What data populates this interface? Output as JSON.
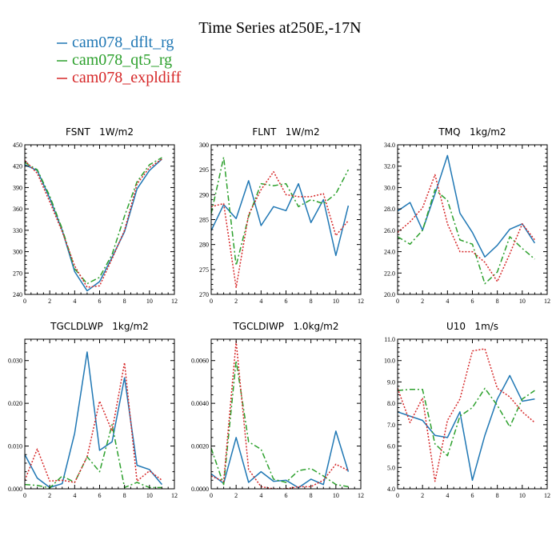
{
  "figure": {
    "title": "Time Series at250E,-17N"
  },
  "legend": [
    {
      "label": "cam078_dflt_rg",
      "color": "#1f77b4",
      "dash": "solid"
    },
    {
      "label": "cam078_qt5_rg",
      "color": "#2ca02c",
      "dash": "dashdot"
    },
    {
      "label": "cam078_expldiff",
      "color": "#d62728",
      "dash": "dotted"
    }
  ],
  "chart_data": [
    {
      "type": "line",
      "title": "FSNT   1W/m2",
      "x": [
        0,
        1,
        2,
        3,
        4,
        5,
        6,
        7,
        8,
        9,
        10,
        11
      ],
      "xlim": [
        0,
        12
      ],
      "xticks": [
        0,
        2,
        4,
        6,
        8,
        10,
        12
      ],
      "xtick_labels": [
        "0",
        "2",
        "4",
        "6",
        "8",
        "10",
        "12"
      ],
      "ylim": [
        240,
        450
      ],
      "yticks": [
        240,
        270,
        300,
        330,
        360,
        390,
        420,
        450
      ],
      "ytick_labels": [
        "240",
        "270",
        "300",
        "330",
        "360",
        "390",
        "420",
        "450"
      ],
      "series": [
        {
          "name": "cam078_dflt_rg",
          "values": [
            422,
            414,
            375,
            330,
            272,
            245,
            258,
            292,
            328,
            388,
            414,
            430
          ]
        },
        {
          "name": "cam078_qt5_rg",
          "values": [
            425,
            415,
            378,
            332,
            276,
            255,
            264,
            296,
            350,
            398,
            422,
            432
          ]
        },
        {
          "name": "cam078_expldiff",
          "values": [
            428,
            410,
            370,
            328,
            280,
            250,
            252,
            290,
            330,
            395,
            418,
            430
          ]
        }
      ]
    },
    {
      "type": "line",
      "title": "FLNT   1W/m2",
      "x": [
        0,
        1,
        2,
        3,
        4,
        5,
        6,
        7,
        8,
        9,
        10,
        11
      ],
      "xlim": [
        0,
        12
      ],
      "xticks": [
        0,
        2,
        4,
        6,
        8,
        10,
        12
      ],
      "xtick_labels": [
        "0",
        "2",
        "4",
        "6",
        "8",
        "10",
        "12"
      ],
      "ylim": [
        270,
        300
      ],
      "yticks": [
        270,
        275,
        280,
        285,
        290,
        295,
        300
      ],
      "ytick_labels": [
        "270",
        "275",
        "280",
        "285",
        "290",
        "295",
        "300"
      ],
      "series": [
        {
          "name": "cam078_dflt_rg",
          "values": [
            282.8,
            288.0,
            285.2,
            292.8,
            283.8,
            287.6,
            286.8,
            292.2,
            284.4,
            289.0,
            277.8,
            287.8
          ]
        },
        {
          "name": "cam078_qt5_rg",
          "values": [
            286.2,
            297.5,
            275.8,
            285.6,
            292.2,
            291.8,
            292.2,
            287.6,
            289.0,
            288.2,
            290.2,
            295.0
          ]
        },
        {
          "name": "cam078_expldiff",
          "values": [
            287.6,
            288.2,
            271.4,
            286.0,
            291.0,
            294.6,
            290.0,
            289.6,
            289.6,
            290.2,
            281.8,
            284.8
          ]
        }
      ]
    },
    {
      "type": "line",
      "title": "TMQ   1kg/m2",
      "x": [
        0,
        1,
        2,
        3,
        4,
        5,
        6,
        7,
        8,
        9,
        10,
        11
      ],
      "xlim": [
        0,
        12
      ],
      "xticks": [
        0,
        2,
        4,
        6,
        8,
        10,
        12
      ],
      "xtick_labels": [
        "0",
        "2",
        "4",
        "6",
        "8",
        "10",
        "12"
      ],
      "ylim": [
        20,
        34
      ],
      "yticks": [
        20,
        22,
        24,
        26,
        28,
        30,
        32,
        34
      ],
      "ytick_labels": [
        "20.0",
        "22.0",
        "24.0",
        "26.0",
        "28.0",
        "30.0",
        "32.0",
        "34.0"
      ],
      "series": [
        {
          "name": "cam078_dflt_rg",
          "values": [
            27.8,
            28.6,
            26.0,
            29.4,
            33.0,
            27.6,
            25.8,
            23.5,
            24.6,
            26.1,
            26.6,
            24.8
          ]
        },
        {
          "name": "cam078_qt5_rg",
          "values": [
            25.4,
            24.7,
            26.0,
            29.8,
            28.8,
            25.1,
            24.7,
            21.0,
            22.1,
            25.4,
            24.3,
            23.3
          ]
        },
        {
          "name": "cam078_expldiff",
          "values": [
            25.8,
            26.8,
            28.1,
            31.2,
            26.6,
            24.0,
            24.0,
            23.0,
            21.2,
            23.8,
            26.6,
            25.1
          ]
        }
      ]
    },
    {
      "type": "line",
      "title": "TGCLDLWP   1kg/m2",
      "x": [
        0,
        1,
        2,
        3,
        4,
        5,
        6,
        7,
        8,
        9,
        10,
        11
      ],
      "xlim": [
        0,
        12
      ],
      "xticks": [
        0,
        2,
        4,
        6,
        8,
        10,
        12
      ],
      "xtick_labels": [
        "0",
        "2",
        "4",
        "6",
        "8",
        "10",
        "12"
      ],
      "ylim": [
        0,
        0.035
      ],
      "yticks": [
        0,
        0.01,
        0.02,
        0.03
      ],
      "ytick_labels": [
        "0.000",
        "0.010",
        "0.020",
        "0.030"
      ],
      "series": [
        {
          "name": "cam078_dflt_rg",
          "values": [
            0.008,
            0.0025,
            0.0003,
            0.0012,
            0.013,
            0.032,
            0.009,
            0.011,
            0.026,
            0.0055,
            0.0045,
            0.001
          ]
        },
        {
          "name": "cam078_qt5_rg",
          "values": [
            0.001,
            0.0008,
            0.0002,
            0.003,
            0.0015,
            0.0075,
            0.004,
            0.015,
            0.0003,
            0.0015,
            0.0003,
            0.0003
          ]
        },
        {
          "name": "cam078_expldiff",
          "values": [
            0.002,
            0.0093,
            0.0018,
            0.002,
            0.0015,
            0.0075,
            0.0205,
            0.0135,
            0.0295,
            0.0018,
            0.0042,
            0.002
          ]
        }
      ]
    },
    {
      "type": "line",
      "title": "TGCLDIWP   1.0kg/m2",
      "x": [
        0,
        1,
        2,
        3,
        4,
        5,
        6,
        7,
        8,
        9,
        10,
        11
      ],
      "xlim": [
        0,
        12
      ],
      "xticks": [
        0,
        2,
        4,
        6,
        8,
        10,
        12
      ],
      "xtick_labels": [
        "0",
        "2",
        "4",
        "6",
        "8",
        "10",
        "12"
      ],
      "ylim": [
        0,
        0.007
      ],
      "yticks": [
        0,
        0.002,
        0.004,
        0.006
      ],
      "ytick_labels": [
        "0.0000",
        "0.0020",
        "0.0040",
        "0.0060"
      ],
      "series": [
        {
          "name": "cam078_dflt_rg",
          "values": [
            0.0007,
            0.00025,
            0.0024,
            0.0003,
            0.0008,
            0.00035,
            0.0004,
            5e-05,
            0.00045,
            0.0002,
            0.0027,
            0.0008
          ]
        },
        {
          "name": "cam078_qt5_rg",
          "values": [
            0.0019,
            0.0002,
            0.006,
            0.0022,
            0.00185,
            0.00045,
            0.0003,
            0.00085,
            0.00095,
            0.0006,
            0.0002,
            0.0001
          ]
        },
        {
          "name": "cam078_expldiff",
          "values": [
            0.0006,
            0.00035,
            0.0069,
            0.0009,
            0.0001,
            0.0,
            0.0,
            0.0001,
            0.0001,
            0.0004,
            0.00115,
            0.00085
          ]
        }
      ]
    },
    {
      "type": "line",
      "title": "U10   1m/s",
      "x": [
        0,
        1,
        2,
        3,
        4,
        5,
        6,
        7,
        8,
        9,
        10,
        11
      ],
      "xlim": [
        0,
        12
      ],
      "xticks": [
        0,
        2,
        4,
        6,
        8,
        10,
        12
      ],
      "xtick_labels": [
        "0",
        "2",
        "4",
        "6",
        "8",
        "10",
        "12"
      ],
      "ylim": [
        4,
        11
      ],
      "yticks": [
        4,
        5,
        6,
        7,
        8,
        9,
        10,
        11
      ],
      "ytick_labels": [
        "4.0",
        "5.0",
        "6.0",
        "7.0",
        "8.0",
        "9.0",
        "10.0",
        "11.0"
      ],
      "series": [
        {
          "name": "cam078_dflt_rg",
          "values": [
            7.6,
            7.4,
            7.2,
            6.5,
            6.4,
            7.6,
            4.4,
            6.5,
            8.2,
            9.3,
            8.1,
            8.2
          ]
        },
        {
          "name": "cam078_qt5_rg",
          "values": [
            8.6,
            8.65,
            8.65,
            6.1,
            5.55,
            7.4,
            7.8,
            8.7,
            7.9,
            6.9,
            8.2,
            8.6
          ]
        },
        {
          "name": "cam078_expldiff",
          "values": [
            8.7,
            7.1,
            8.25,
            4.35,
            7.2,
            8.2,
            10.45,
            10.55,
            8.7,
            8.3,
            7.6,
            7.1
          ]
        }
      ]
    }
  ]
}
